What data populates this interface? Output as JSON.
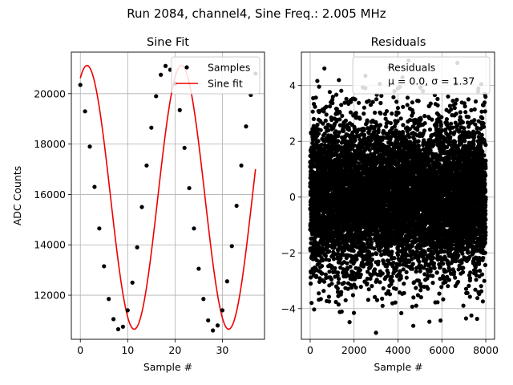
{
  "figure": {
    "suptitle": "Run 2084, channel4, Sine Freq.: 2.005 MHz"
  },
  "chart_data": [
    {
      "type": "line",
      "title": "Sine Fit",
      "xlabel": "Sample #",
      "ylabel": "ADC Counts",
      "xlim": [
        -1.9,
        38.9
      ],
      "ylim": [
        10250,
        21650
      ],
      "x_ticks": [
        0,
        10,
        20,
        30
      ],
      "y_ticks": [
        12000,
        14000,
        16000,
        18000,
        20000
      ],
      "grid": true,
      "legend": {
        "placement": "top-right",
        "entries": [
          "Samples",
          "Sine fit"
        ]
      },
      "sine_fit": {
        "amplitude": 5235,
        "offset": 15885,
        "period": 19.95,
        "phase_deg": 64.7
      },
      "series": [
        {
          "name": "Samples",
          "style": "scatter",
          "color": "#000000",
          "x": [
            0,
            1,
            2,
            3,
            4,
            5,
            6,
            7,
            8,
            9,
            10,
            11,
            12,
            13,
            14,
            15,
            16,
            17,
            18,
            19,
            20,
            21,
            22,
            23,
            24,
            25,
            26,
            27,
            28,
            29,
            30,
            31,
            32,
            33,
            34,
            35,
            36,
            37
          ],
          "y": [
            20350,
            19300,
            17900,
            16300,
            14650,
            13150,
            11850,
            11050,
            10650,
            10750,
            11400,
            12500,
            13900,
            15500,
            17150,
            18650,
            19900,
            20750,
            21100,
            20950,
            20400,
            19350,
            17850,
            16250,
            14650,
            13050,
            11850,
            11000,
            10600,
            10800,
            11400,
            12550,
            13950,
            15550,
            17150,
            18700,
            19950,
            20800
          ]
        },
        {
          "name": "Sine fit",
          "style": "line",
          "color": "#ee0000"
        }
      ]
    },
    {
      "type": "scatter",
      "title": "Residuals",
      "xlabel": "Sample #",
      "ylabel": "",
      "xlim": [
        -400,
        8400
      ],
      "ylim": [
        -5.1,
        5.2
      ],
      "x_ticks": [
        0,
        2000,
        4000,
        6000,
        8000
      ],
      "y_ticks": [
        -4,
        -2,
        0,
        2,
        4
      ],
      "grid": true,
      "legend": {
        "placement": "top-right",
        "entries": [
          "Residuals",
          "μ = 0.0, σ = 1.37"
        ]
      },
      "residual_stats": {
        "mean": 0.0,
        "std": 1.37,
        "n_samples": 8000
      },
      "series": [
        {
          "name": "Residuals",
          "style": "scatter",
          "color": "#000000"
        }
      ]
    }
  ]
}
